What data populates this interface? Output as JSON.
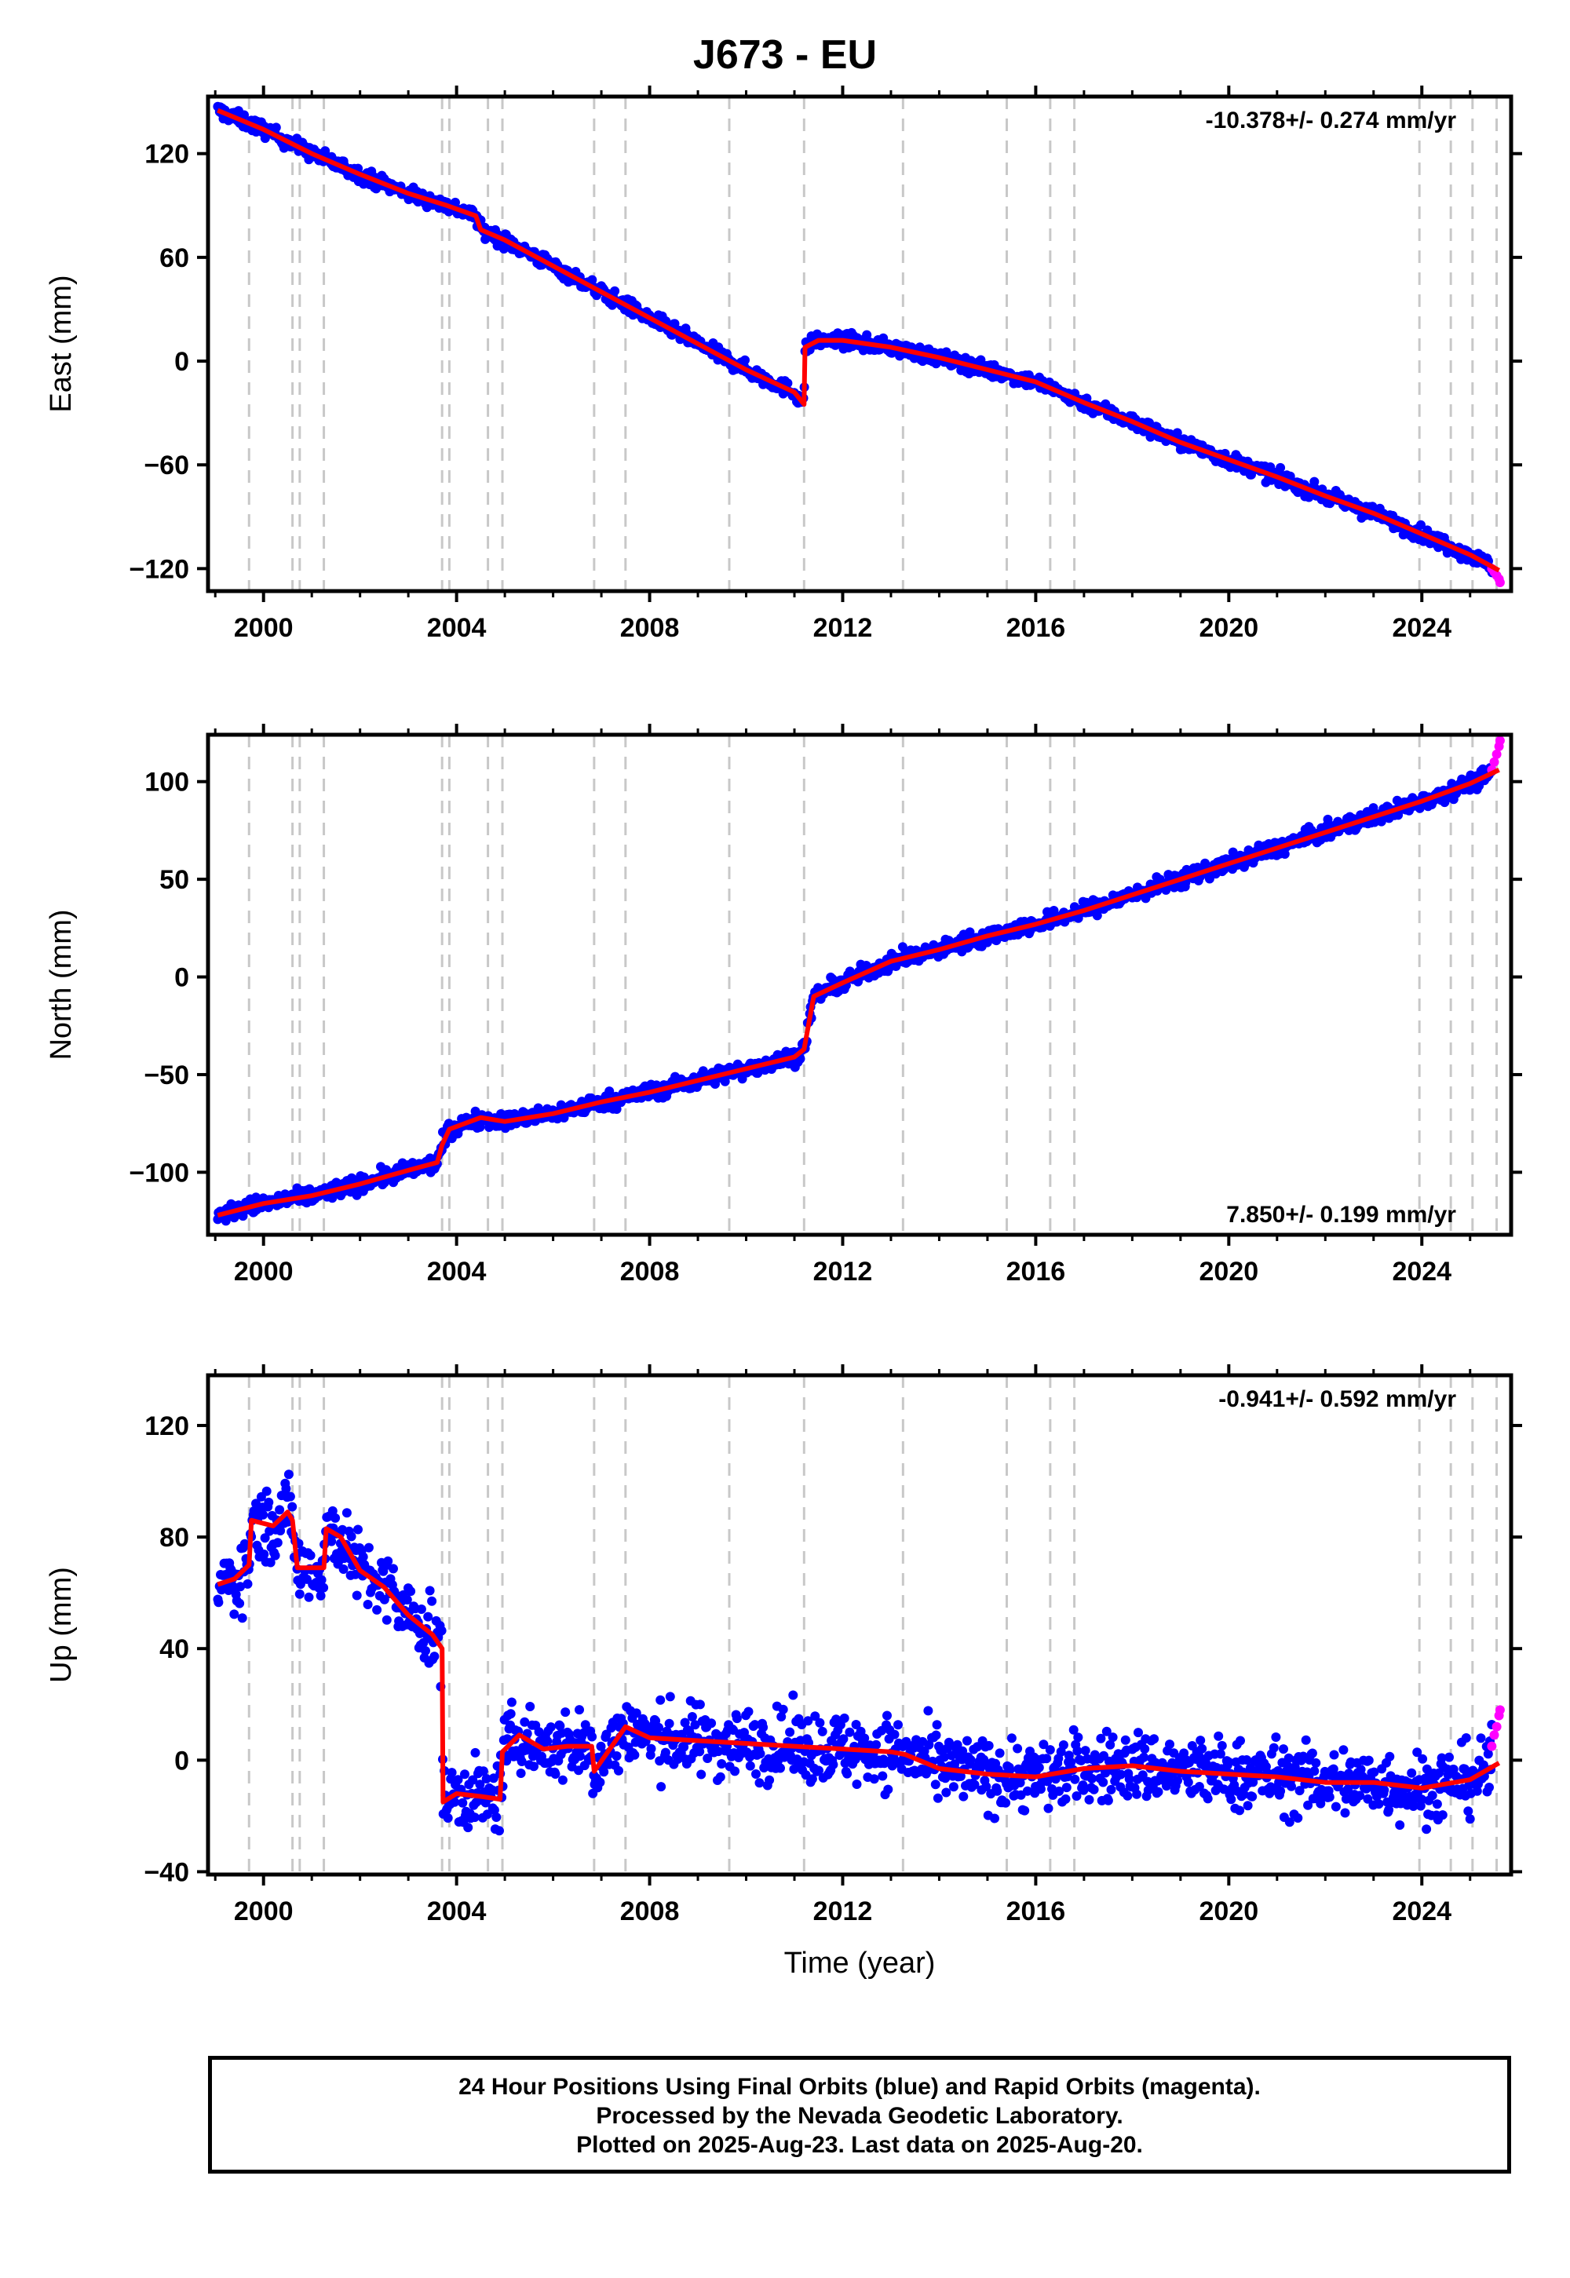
{
  "title": "J673 - EU",
  "colors": {
    "final_orbits": "#0000ff",
    "rapid_orbits": "#ff00ff",
    "model": "#ff0000",
    "event_lines": "#c8c8c8"
  },
  "xaxis": {
    "label": "Time (year)",
    "range": [
      1998.85,
      2025.85
    ],
    "ticks": [
      2000,
      2004,
      2008,
      2012,
      2016,
      2020,
      2024
    ],
    "tick_labels": [
      "2000",
      "2004",
      "2008",
      "2012",
      "2016",
      "2020",
      "2024"
    ]
  },
  "event_lines": [
    1999.7,
    2000.6,
    2000.75,
    2001.25,
    2003.7,
    2003.85,
    2004.65,
    2004.95,
    2006.85,
    2007.5,
    2009.65,
    2011.2,
    2013.25,
    2015.4,
    2016.3,
    2016.8,
    2023.95,
    2024.6,
    2025.05,
    2025.55
  ],
  "footer": {
    "line1": "24 Hour Positions Using Final Orbits (blue) and Rapid Orbits (magenta).",
    "line2": "Processed by the Nevada Geodetic Laboratory.",
    "line3": "Plotted on 2025-Aug-23. Last data on 2025-Aug-20."
  },
  "chart_data": [
    {
      "type": "scatter",
      "component": "east",
      "ylabel": "East (mm)",
      "rate_label": "-10.378+/- 0.274 mm/yr",
      "ylim": [
        -133,
        153
      ],
      "yticks": [
        120,
        60,
        0,
        -60,
        -120
      ],
      "ytick_labels": [
        "120",
        "60",
        "0",
        "−60",
        "−120"
      ],
      "scatter_noise_mm": 3,
      "series": [
        {
          "name": "model",
          "x": [
            1999.05,
            2000.0,
            2001.0,
            2002.0,
            2003.0,
            2003.8,
            2004.4,
            2004.5,
            2005.0,
            2006.0,
            2007.0,
            2008.0,
            2009.0,
            2010.0,
            2011.0,
            2011.2,
            2011.22,
            2011.5,
            2012.0,
            2013.0,
            2014.0,
            2015.0,
            2016.0,
            2017.0,
            2018.0,
            2019.0,
            2020.0,
            2021.0,
            2022.0,
            2023.0,
            2024.0,
            2025.0,
            2025.6
          ],
          "y": [
            145,
            134,
            120,
            108,
            97,
            90,
            84,
            76,
            70,
            55,
            40,
            25,
            10,
            -5,
            -18,
            -25,
            8,
            12,
            12,
            8,
            2,
            -5,
            -12,
            -24,
            -35,
            -47,
            -57,
            -67,
            -78,
            -88,
            -100,
            -112,
            -121
          ]
        },
        {
          "name": "rapid",
          "x": [
            2025.45,
            2025.5,
            2025.55,
            2025.6,
            2025.62
          ],
          "y": [
            -120,
            -122,
            -124,
            -126,
            -128
          ]
        }
      ]
    },
    {
      "type": "scatter",
      "component": "north",
      "ylabel": "North (mm)",
      "rate_label": "7.850+/- 0.199 mm/yr",
      "ylim": [
        -132,
        124
      ],
      "yticks": [
        100,
        50,
        0,
        -50,
        -100
      ],
      "ytick_labels": [
        "100",
        "50",
        "0",
        "−50",
        "−100"
      ],
      "scatter_noise_mm": 3,
      "series": [
        {
          "name": "model",
          "x": [
            1999.05,
            2000.0,
            2001.0,
            2002.0,
            2003.0,
            2003.6,
            2003.7,
            2003.85,
            2004.5,
            2005.0,
            2006.0,
            2007.0,
            2008.0,
            2009.0,
            2010.0,
            2011.0,
            2011.2,
            2011.4,
            2012.0,
            2013.0,
            2014.0,
            2015.0,
            2016.0,
            2017.0,
            2018.0,
            2019.0,
            2020.0,
            2021.0,
            2022.0,
            2023.0,
            2024.0,
            2025.0,
            2025.6
          ],
          "y": [
            -122,
            -116,
            -112,
            -106,
            -99,
            -95,
            -86,
            -78,
            -72,
            -74,
            -70,
            -64,
            -59,
            -53,
            -47,
            -41,
            -37,
            -10,
            -3,
            8,
            14,
            21,
            27,
            34,
            42,
            50,
            58,
            66,
            74,
            82,
            90,
            99,
            106
          ]
        },
        {
          "name": "rapid",
          "x": [
            2025.45,
            2025.5,
            2025.55,
            2025.6,
            2025.62
          ],
          "y": [
            106,
            110,
            114,
            118,
            121
          ]
        }
      ]
    },
    {
      "type": "scatter",
      "component": "up",
      "ylabel": "Up (mm)",
      "rate_label": "-0.941+/- 0.592 mm/yr",
      "ylim": [
        -41,
        138
      ],
      "yticks": [
        120,
        80,
        40,
        0,
        -40
      ],
      "ytick_labels": [
        "120",
        "80",
        "40",
        "0",
        "−40"
      ],
      "scatter_noise_mm": 9,
      "series": [
        {
          "name": "model",
          "x": [
            1999.05,
            1999.4,
            1999.7,
            1999.75,
            2000.2,
            2000.5,
            2000.6,
            2000.7,
            2001.25,
            2001.3,
            2001.6,
            2002.0,
            2002.5,
            2003.0,
            2003.5,
            2003.7,
            2003.72,
            2004.0,
            2004.5,
            2004.9,
            2004.95,
            2005.3,
            2005.8,
            2006.3,
            2006.8,
            2006.85,
            2007.5,
            2008.0,
            2009.0,
            2010.0,
            2011.0,
            2012.0,
            2013.0,
            2013.3,
            2014.0,
            2015.0,
            2016.0,
            2017.0,
            2018.0,
            2019.0,
            2020.0,
            2021.0,
            2022.0,
            2023.0,
            2024.0,
            2025.0,
            2025.6
          ],
          "y": [
            63,
            65,
            70,
            86,
            84,
            89,
            86,
            69,
            69,
            83,
            80,
            68,
            62,
            52,
            45,
            40,
            -15,
            -12,
            -13,
            -14,
            3,
            9,
            4,
            5,
            5,
            -4,
            12,
            8,
            7,
            6,
            5,
            4,
            3,
            2,
            -3,
            -5,
            -6,
            -3,
            -2,
            -4,
            -5,
            -6,
            -8,
            -8,
            -10,
            -7,
            -1
          ]
        },
        {
          "name": "rapid",
          "x": [
            2025.45,
            2025.5,
            2025.55,
            2025.6,
            2025.62
          ],
          "y": [
            5,
            9,
            12,
            16,
            18
          ]
        }
      ]
    }
  ]
}
